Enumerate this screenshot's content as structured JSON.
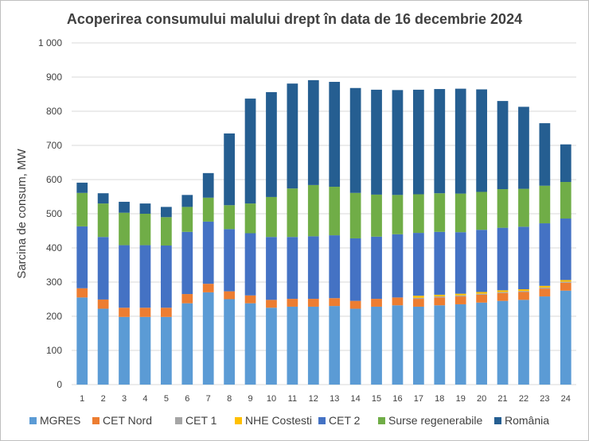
{
  "chart_data": {
    "type": "bar",
    "stacked": true,
    "title": "Acoperirea consumului malului drept în data de 16 decembrie 2024",
    "xlabel": "",
    "ylabel": "Sarcina de consum, MW",
    "ylim": [
      0,
      1000
    ],
    "yticks": [
      "0",
      "100",
      "200",
      "300",
      "400",
      "500",
      "600",
      "700",
      "800",
      "900",
      "1 000"
    ],
    "grid": true,
    "legend_position": "bottom",
    "categories": [
      "1",
      "2",
      "3",
      "4",
      "5",
      "6",
      "7",
      "8",
      "9",
      "10",
      "11",
      "12",
      "13",
      "14",
      "15",
      "16",
      "17",
      "18",
      "19",
      "20",
      "21",
      "22",
      "23",
      "24"
    ],
    "series": [
      {
        "name": "MGRES",
        "color": "#5B9BD5",
        "values": [
          255,
          222,
          198,
          198,
          198,
          238,
          270,
          250,
          238,
          225,
          228,
          228,
          230,
          222,
          228,
          232,
          228,
          232,
          235,
          240,
          245,
          248,
          258,
          275
        ]
      },
      {
        "name": "CET Nord",
        "color": "#ED7D31",
        "values": [
          27,
          27,
          27,
          27,
          27,
          27,
          25,
          23,
          23,
          23,
          23,
          23,
          23,
          23,
          23,
          23,
          23,
          23,
          23,
          23,
          23,
          23,
          23,
          23
        ]
      },
      {
        "name": "CET 1",
        "color": "#A5A5A5",
        "values": [
          0,
          0,
          0,
          0,
          0,
          0,
          0,
          0,
          0,
          0,
          0,
          0,
          0,
          0,
          0,
          0,
          3,
          3,
          3,
          3,
          3,
          3,
          3,
          3
        ]
      },
      {
        "name": "NHE Costesti",
        "color": "#FFC000",
        "values": [
          0,
          0,
          0,
          0,
          0,
          0,
          0,
          0,
          0,
          0,
          0,
          0,
          0,
          0,
          0,
          0,
          6,
          5,
          5,
          5,
          5,
          5,
          5,
          5
        ]
      },
      {
        "name": "CET 2",
        "color": "#4472C4",
        "values": [
          181,
          183,
          183,
          183,
          182,
          182,
          182,
          182,
          182,
          184,
          181,
          183,
          184,
          183,
          182,
          185,
          184,
          184,
          180,
          182,
          183,
          183,
          183,
          180
        ]
      },
      {
        "name": "Surse regenerabile",
        "color": "#70AD47",
        "values": [
          98,
          98,
          95,
          92,
          83,
          73,
          70,
          70,
          87,
          117,
          142,
          150,
          142,
          133,
          123,
          115,
          113,
          113,
          113,
          111,
          113,
          111,
          110,
          107
        ]
      },
      {
        "name": "România",
        "color": "#255E91",
        "values": [
          30,
          30,
          32,
          30,
          30,
          35,
          72,
          210,
          307,
          307,
          307,
          307,
          307,
          307,
          307,
          307,
          306,
          305,
          307,
          300,
          258,
          240,
          183,
          110
        ]
      }
    ]
  }
}
